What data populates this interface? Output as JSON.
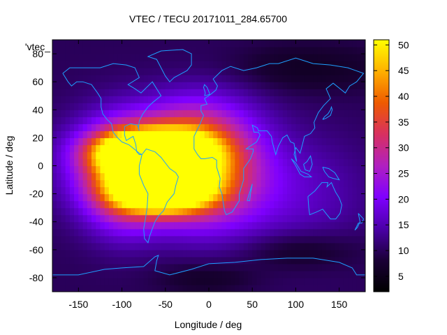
{
  "chart_data": {
    "type": "heatmap",
    "title": "VTEC / TECU 20171011_284.65700",
    "xlabel": "Longitude / deg",
    "ylabel": "Latitude / deg",
    "legend_key": "'vtec_",
    "xlim": [
      -180,
      180
    ],
    "ylim": [
      -90,
      90
    ],
    "xticks": [
      -150,
      -100,
      -50,
      0,
      50,
      100,
      150
    ],
    "xtick_labels": [
      "-150",
      "-100",
      "-50",
      "0",
      "50",
      "100",
      "150"
    ],
    "yticks": [
      -80,
      -60,
      -40,
      -20,
      0,
      20,
      40,
      60,
      80
    ],
    "ytick_labels": [
      "-80",
      "-60",
      "-40",
      "-20",
      "0",
      "20",
      "40",
      "60",
      "80"
    ],
    "colorbar": {
      "range": [
        2,
        51
      ],
      "ticks": [
        5,
        10,
        15,
        20,
        25,
        30,
        35,
        40,
        45,
        50
      ],
      "tick_labels": [
        "5",
        "10",
        "15",
        "20",
        "25",
        "30",
        "35",
        "40",
        "45",
        "50"
      ],
      "colormap": [
        "#000000",
        "#1a0036",
        "#4b00a8",
        "#7f00ff",
        "#b020c0",
        "#d83060",
        "#ee5a00",
        "#ffb000",
        "#ffff00"
      ]
    },
    "grid": {
      "lon_step": 5,
      "lat_step": 5,
      "background_vtec": 10
    },
    "peaks": [
      {
        "lon": -70,
        "lat": 10,
        "vtec": 48,
        "sigma_lon": 40,
        "sigma_lat": 10
      },
      {
        "lon": -55,
        "lat": -18,
        "vtec": 44,
        "sigma_lon": 35,
        "sigma_lat": 10
      },
      {
        "lon": -60,
        "lat": 0,
        "vtec": 30,
        "sigma_lon": 60,
        "sigma_lat": 25
      },
      {
        "lon": -20,
        "lat": 5,
        "vtec": 18,
        "sigma_lon": 35,
        "sigma_lat": 25
      },
      {
        "lon": -100,
        "lat": -10,
        "vtec": 16,
        "sigma_lon": 30,
        "sigma_lat": 25
      },
      {
        "lon": 20,
        "lat": 0,
        "vtec": 10,
        "sigma_lon": 40,
        "sigma_lat": 35
      },
      {
        "lon": 100,
        "lat": -20,
        "vtec": 6,
        "sigma_lon": 60,
        "sigma_lat": 30
      },
      {
        "lon": 110,
        "lat": 70,
        "vtec": -4,
        "sigma_lon": 70,
        "sigma_lat": 12
      },
      {
        "lon": 100,
        "lat": -60,
        "vtec": -5,
        "sigma_lon": 50,
        "sigma_lat": 10
      },
      {
        "lon": 0,
        "lat": -80,
        "vtec": -4,
        "sigma_lon": 40,
        "sigma_lat": 8
      }
    ],
    "coastlines": [
      {
        "name": "north-america",
        "points": [
          [
            -168,
            66
          ],
          [
            -160,
            70
          ],
          [
            -140,
            70
          ],
          [
            -125,
            70
          ],
          [
            -110,
            73
          ],
          [
            -95,
            72
          ],
          [
            -85,
            70
          ],
          [
            -80,
            63
          ],
          [
            -93,
            58
          ],
          [
            -85,
            55
          ],
          [
            -78,
            52
          ],
          [
            -65,
            60
          ],
          [
            -60,
            55
          ],
          [
            -55,
            50
          ],
          [
            -65,
            45
          ],
          [
            -70,
            42
          ],
          [
            -76,
            37
          ],
          [
            -80,
            32
          ],
          [
            -81,
            27
          ],
          [
            -80,
            25
          ],
          [
            -82,
            29
          ],
          [
            -90,
            30
          ],
          [
            -97,
            28
          ],
          [
            -97,
            22
          ],
          [
            -95,
            18
          ],
          [
            -90,
            20
          ],
          [
            -87,
            21
          ],
          [
            -84,
            15
          ],
          [
            -83,
            10
          ],
          [
            -80,
            8
          ],
          [
            -77,
            8
          ],
          [
            -80,
            9
          ],
          [
            -86,
            12
          ],
          [
            -92,
            15
          ],
          [
            -100,
            17
          ],
          [
            -105,
            20
          ],
          [
            -110,
            24
          ],
          [
            -112,
            30
          ],
          [
            -117,
            33
          ],
          [
            -122,
            37
          ],
          [
            -124,
            42
          ],
          [
            -124,
            48
          ],
          [
            -128,
            52
          ],
          [
            -135,
            58
          ],
          [
            -145,
            60
          ],
          [
            -152,
            60
          ],
          [
            -158,
            57
          ],
          [
            -162,
            60
          ],
          [
            -166,
            64
          ],
          [
            -168,
            66
          ]
        ]
      },
      {
        "name": "south-america",
        "points": [
          [
            -77,
            8
          ],
          [
            -72,
            12
          ],
          [
            -62,
            10
          ],
          [
            -55,
            6
          ],
          [
            -50,
            2
          ],
          [
            -45,
            -2
          ],
          [
            -38,
            -5
          ],
          [
            -35,
            -8
          ],
          [
            -38,
            -14
          ],
          [
            -40,
            -20
          ],
          [
            -44,
            -23
          ],
          [
            -48,
            -26
          ],
          [
            -52,
            -32
          ],
          [
            -58,
            -36
          ],
          [
            -62,
            -40
          ],
          [
            -65,
            -45
          ],
          [
            -68,
            -50
          ],
          [
            -70,
            -55
          ],
          [
            -74,
            -52
          ],
          [
            -75,
            -45
          ],
          [
            -73,
            -38
          ],
          [
            -71,
            -30
          ],
          [
            -70,
            -20
          ],
          [
            -75,
            -14
          ],
          [
            -80,
            -6
          ],
          [
            -80,
            0
          ],
          [
            -78,
            5
          ],
          [
            -77,
            8
          ]
        ]
      },
      {
        "name": "greenland",
        "points": [
          [
            -55,
            82
          ],
          [
            -30,
            83
          ],
          [
            -20,
            80
          ],
          [
            -20,
            72
          ],
          [
            -25,
            68
          ],
          [
            -40,
            63
          ],
          [
            -45,
            60
          ],
          [
            -50,
            64
          ],
          [
            -55,
            70
          ],
          [
            -60,
            76
          ],
          [
            -70,
            78
          ],
          [
            -55,
            82
          ]
        ]
      },
      {
        "name": "africa-eurasia",
        "points": [
          [
            -17,
            15
          ],
          [
            -17,
            21
          ],
          [
            -10,
            30
          ],
          [
            -6,
            36
          ],
          [
            -9,
            39
          ],
          [
            -9,
            43
          ],
          [
            -2,
            44
          ],
          [
            -5,
            48
          ],
          [
            2,
            51
          ],
          [
            8,
            54
          ],
          [
            10,
            57
          ],
          [
            5,
            62
          ],
          [
            15,
            68
          ],
          [
            25,
            71
          ],
          [
            40,
            68
          ],
          [
            55,
            70
          ],
          [
            70,
            73
          ],
          [
            80,
            73
          ],
          [
            100,
            77
          ],
          [
            120,
            73
          ],
          [
            140,
            72
          ],
          [
            160,
            70
          ],
          [
            178,
            66
          ],
          [
            170,
            60
          ],
          [
            162,
            57
          ],
          [
            157,
            52
          ],
          [
            143,
            59
          ],
          [
            135,
            55
          ],
          [
            140,
            48
          ],
          [
            132,
            43
          ],
          [
            126,
            38
          ],
          [
            121,
            31
          ],
          [
            122,
            27
          ],
          [
            117,
            23
          ],
          [
            110,
            21
          ],
          [
            108,
            16
          ],
          [
            105,
            9
          ],
          [
            100,
            13
          ],
          [
            98,
            8
          ],
          [
            101,
            3
          ],
          [
            98,
            16
          ],
          [
            94,
            17
          ],
          [
            90,
            22
          ],
          [
            85,
            20
          ],
          [
            80,
            14
          ],
          [
            77,
            8
          ],
          [
            73,
            17
          ],
          [
            72,
            21
          ],
          [
            67,
            25
          ],
          [
            57,
            25
          ],
          [
            56,
            27
          ],
          [
            50,
            29
          ],
          [
            52,
            24
          ],
          [
            57,
            24
          ],
          [
            59,
            22
          ],
          [
            55,
            17
          ],
          [
            45,
            13
          ],
          [
            43,
            12
          ],
          [
            51,
            12
          ],
          [
            51,
            10
          ],
          [
            48,
            5
          ],
          [
            40,
            -2
          ],
          [
            40,
            -10
          ],
          [
            35,
            -20
          ],
          [
            35,
            -25
          ],
          [
            32,
            -28
          ],
          [
            27,
            -33
          ],
          [
            20,
            -35
          ],
          [
            18,
            -32
          ],
          [
            17,
            -28
          ],
          [
            15,
            -20
          ],
          [
            12,
            -15
          ],
          [
            13,
            -9
          ],
          [
            9,
            -1
          ],
          [
            9,
            4
          ],
          [
            4,
            6
          ],
          [
            -5,
            5
          ],
          [
            -9,
            5
          ],
          [
            -13,
            8
          ],
          [
            -17,
            12
          ],
          [
            -17,
            15
          ]
        ]
      },
      {
        "name": "australia",
        "points": [
          [
            114,
            -22
          ],
          [
            122,
            -18
          ],
          [
            130,
            -12
          ],
          [
            137,
            -12
          ],
          [
            136,
            -15
          ],
          [
            141,
            -12
          ],
          [
            143,
            -15
          ],
          [
            146,
            -19
          ],
          [
            150,
            -23
          ],
          [
            153,
            -28
          ],
          [
            151,
            -34
          ],
          [
            146,
            -38
          ],
          [
            140,
            -38
          ],
          [
            136,
            -35
          ],
          [
            131,
            -31
          ],
          [
            124,
            -33
          ],
          [
            116,
            -35
          ],
          [
            115,
            -30
          ],
          [
            114,
            -22
          ]
        ]
      },
      {
        "name": "antarctica",
        "points": [
          [
            -180,
            -78
          ],
          [
            -150,
            -78
          ],
          [
            -120,
            -74
          ],
          [
            -100,
            -73
          ],
          [
            -75,
            -72
          ],
          [
            -62,
            -65
          ],
          [
            -58,
            -64
          ],
          [
            -60,
            -68
          ],
          [
            -62,
            -75
          ],
          [
            -45,
            -78
          ],
          [
            -20,
            -74
          ],
          [
            0,
            -70
          ],
          [
            30,
            -69
          ],
          [
            60,
            -67
          ],
          [
            90,
            -66
          ],
          [
            120,
            -66
          ],
          [
            150,
            -69
          ],
          [
            165,
            -73
          ],
          [
            170,
            -78
          ],
          [
            180,
            -78
          ]
        ]
      },
      {
        "name": "madagascar",
        "points": [
          [
            44,
            -25
          ],
          [
            49,
            -15
          ],
          [
            50,
            -13
          ],
          [
            48,
            -20
          ],
          [
            47,
            -25
          ],
          [
            44,
            -25
          ]
        ]
      },
      {
        "name": "japan",
        "points": [
          [
            131,
            33
          ],
          [
            135,
            34
          ],
          [
            140,
            36
          ],
          [
            142,
            40
          ],
          [
            141,
            42
          ],
          [
            140,
            40
          ],
          [
            137,
            37
          ],
          [
            133,
            35
          ],
          [
            131,
            33
          ]
        ]
      },
      {
        "name": "great-britain",
        "points": [
          [
            -5,
            50
          ],
          [
            1,
            51
          ],
          [
            0,
            53
          ],
          [
            -2,
            56
          ],
          [
            -5,
            58
          ],
          [
            -6,
            56
          ],
          [
            -5,
            54
          ],
          [
            -4,
            52
          ],
          [
            -5,
            50
          ]
        ]
      },
      {
        "name": "new-zealand",
        "points": [
          [
            172,
            -34
          ],
          [
            178,
            -38
          ],
          [
            176,
            -41
          ],
          [
            172,
            -41
          ],
          [
            168,
            -46
          ],
          [
            171,
            -44
          ],
          [
            174,
            -40
          ],
          [
            172,
            -34
          ]
        ]
      },
      {
        "name": "indonesia",
        "points": [
          [
            95,
            5
          ],
          [
            100,
            0
          ],
          [
            105,
            -6
          ],
          [
            110,
            -8
          ],
          [
            115,
            -8
          ],
          [
            118,
            -8
          ],
          [
            114,
            -6
          ],
          [
            106,
            -4
          ],
          [
            104,
            -2
          ],
          [
            100,
            2
          ],
          [
            95,
            5
          ]
        ]
      },
      {
        "name": "borneo",
        "points": [
          [
            109,
            1
          ],
          [
            111,
            -3
          ],
          [
            116,
            -4
          ],
          [
            119,
            1
          ],
          [
            117,
            7
          ],
          [
            113,
            3
          ],
          [
            109,
            1
          ]
        ]
      },
      {
        "name": "new-guinea",
        "points": [
          [
            131,
            -1
          ],
          [
            138,
            -2
          ],
          [
            145,
            -5
          ],
          [
            150,
            -10
          ],
          [
            143,
            -9
          ],
          [
            138,
            -8
          ],
          [
            133,
            -4
          ],
          [
            131,
            -1
          ]
        ]
      }
    ]
  }
}
